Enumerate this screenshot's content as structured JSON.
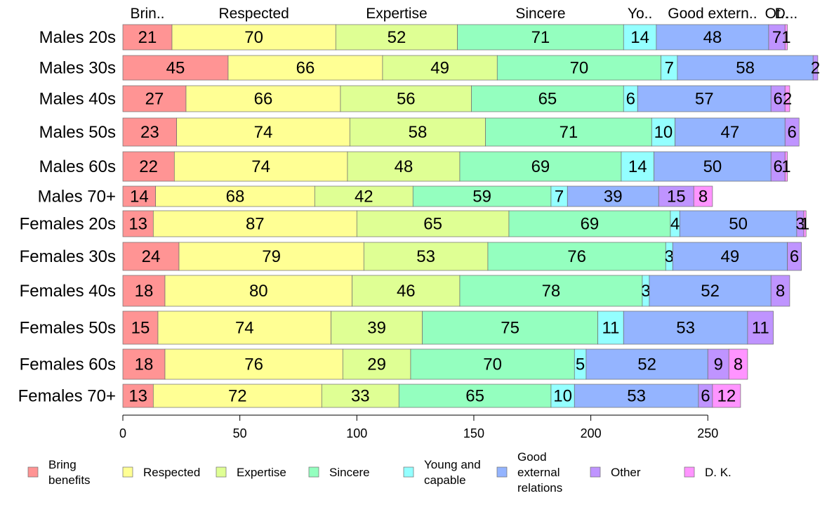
{
  "chart_data": {
    "type": "bar",
    "orientation": "horizontal",
    "stacked": true,
    "categories": [
      "Males 20s",
      "Males 30s",
      "Males 40s",
      "Males 50s",
      "Males 60s",
      "Males 70+",
      "Females 20s",
      "Females 30s",
      "Females 40s",
      "Females 50s",
      "Females 60s",
      "Females 70+"
    ],
    "series": [
      {
        "name": "Bring benefits",
        "color": "#ff9494",
        "values": [
          21,
          45,
          27,
          23,
          22,
          14,
          13,
          24,
          18,
          15,
          18,
          13
        ]
      },
      {
        "name": "Respected",
        "color": "#ffff94",
        "values": [
          70,
          66,
          66,
          74,
          74,
          68,
          87,
          79,
          80,
          74,
          76,
          72
        ]
      },
      {
        "name": "Expertise",
        "color": "#dfff94",
        "values": [
          52,
          49,
          56,
          58,
          48,
          42,
          65,
          53,
          46,
          39,
          29,
          33
        ]
      },
      {
        "name": "Sincere",
        "color": "#94ffbf",
        "values": [
          71,
          70,
          65,
          71,
          69,
          59,
          69,
          76,
          78,
          75,
          70,
          65
        ]
      },
      {
        "name": "Young and capable",
        "color": "#94ffff",
        "values": [
          14,
          7,
          6,
          10,
          14,
          7,
          4,
          3,
          3,
          11,
          5,
          10
        ]
      },
      {
        "name": "Good external relations",
        "color": "#94b4ff",
        "values": [
          48,
          58,
          57,
          47,
          50,
          39,
          50,
          49,
          52,
          53,
          52,
          53
        ]
      },
      {
        "name": "Other",
        "color": "#bf94ff",
        "values": [
          7,
          2,
          6,
          6,
          6,
          15,
          3,
          6,
          8,
          11,
          9,
          6
        ]
      },
      {
        "name": "D. K.",
        "color": "#ff94ff",
        "values": [
          1,
          0,
          2,
          0,
          1,
          8,
          1,
          0,
          0,
          0,
          8,
          12
        ]
      }
    ],
    "top_labels": [
      "Brin..",
      "Respected",
      "Expertise",
      "Sincere",
      "Yo..",
      "Good extern..",
      "Ot..",
      "D..."
    ],
    "xticks": [
      0,
      50,
      100,
      150,
      200,
      250
    ],
    "xlim": [
      0,
      300
    ],
    "legend": {
      "position": "bottom",
      "entries": [
        [
          "Bring",
          "benefits"
        ],
        [
          "Respected"
        ],
        [
          "Expertise"
        ],
        [
          "Sincere"
        ],
        [
          "Young and",
          "capable"
        ],
        [
          "Good",
          "external",
          "relations"
        ],
        [
          "Other"
        ],
        [
          "D. K."
        ]
      ]
    }
  }
}
